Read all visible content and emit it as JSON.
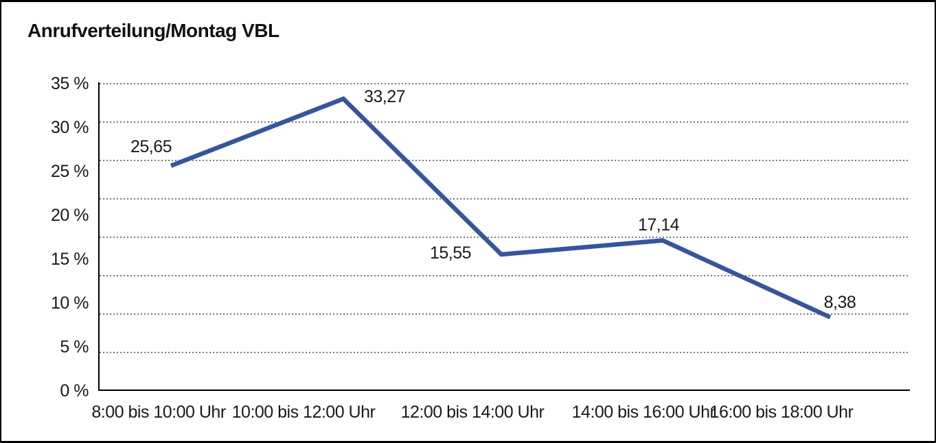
{
  "chart_data": {
    "type": "line",
    "title": "Anrufverteilung/Montag VBL",
    "categories": [
      "8:00 bis 10:00 Uhr",
      "10:00 bis 12:00 Uhr",
      "12:00 bis 14:00 Uhr",
      "14:00 bis 16:00 Uhr",
      "16:00 bis 18:00 Uhr"
    ],
    "values": [
      25.65,
      33.27,
      15.55,
      17.14,
      8.38
    ],
    "value_labels": [
      "25,65",
      "33,27",
      "15,55",
      "17,14",
      "8,38"
    ],
    "ytick_labels": [
      "35 %",
      "30 %",
      "25 %",
      "20 %",
      "15 %",
      "10 %",
      "5 %",
      "0 %"
    ],
    "ytick_values": [
      35,
      30,
      25,
      20,
      15,
      10,
      5,
      0
    ],
    "ylim": [
      0,
      35
    ],
    "xlabel": "",
    "ylabel": "",
    "legend": "none",
    "grid": "horizontal-dotted",
    "series_name": "Anrufverteilung Montag",
    "colors": {
      "line": "#36569B",
      "axis": "#000000",
      "grid": "#767676",
      "text": "#1a1a1a",
      "background": "#ffffff",
      "border": "#000000"
    }
  }
}
